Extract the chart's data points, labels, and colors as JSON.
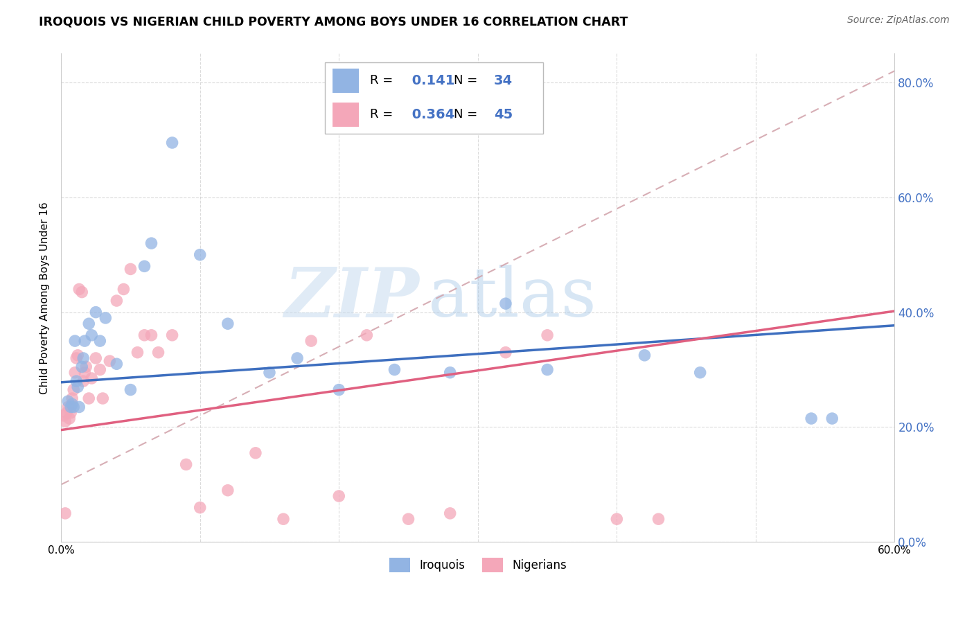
{
  "title": "IROQUOIS VS NIGERIAN CHILD POVERTY AMONG BOYS UNDER 16 CORRELATION CHART",
  "source": "Source: ZipAtlas.com",
  "ylabel": "Child Poverty Among Boys Under 16",
  "xlim": [
    0.0,
    0.6
  ],
  "ylim": [
    0.0,
    0.85
  ],
  "ytick_vals": [
    0.0,
    0.2,
    0.4,
    0.6,
    0.8
  ],
  "xtick_vals": [
    0.0,
    0.1,
    0.2,
    0.3,
    0.4,
    0.5,
    0.6
  ],
  "iroquois_color": "#92B4E3",
  "nigerian_color": "#F4A7B9",
  "regression_blue": "#3E6FBF",
  "regression_pink": "#E06080",
  "dashed_color": "#D0A0A8",
  "iroquois_R": 0.141,
  "iroquois_N": 34,
  "nigerian_R": 0.364,
  "nigerian_N": 45,
  "watermark_zip": "ZIP",
  "watermark_atlas": "atlas",
  "legend_label_iroquois": "Iroquois",
  "legend_label_nigerians": "Nigerians",
  "right_tick_color": "#4472C4",
  "iroquois_x": [
    0.005,
    0.007,
    0.008,
    0.009,
    0.01,
    0.011,
    0.012,
    0.013,
    0.015,
    0.016,
    0.017,
    0.02,
    0.022,
    0.025,
    0.028,
    0.032,
    0.04,
    0.05,
    0.06,
    0.065,
    0.08,
    0.1,
    0.12,
    0.15,
    0.17,
    0.2,
    0.24,
    0.28,
    0.32,
    0.35,
    0.42,
    0.46,
    0.54,
    0.555
  ],
  "iroquois_y": [
    0.245,
    0.235,
    0.24,
    0.235,
    0.35,
    0.28,
    0.27,
    0.235,
    0.305,
    0.32,
    0.35,
    0.38,
    0.36,
    0.4,
    0.35,
    0.39,
    0.31,
    0.265,
    0.48,
    0.52,
    0.695,
    0.5,
    0.38,
    0.295,
    0.32,
    0.265,
    0.3,
    0.295,
    0.415,
    0.3,
    0.325,
    0.295,
    0.215,
    0.215
  ],
  "nigerian_x": [
    0.002,
    0.003,
    0.004,
    0.005,
    0.006,
    0.007,
    0.008,
    0.009,
    0.01,
    0.011,
    0.012,
    0.013,
    0.015,
    0.016,
    0.017,
    0.018,
    0.02,
    0.022,
    0.025,
    0.028,
    0.03,
    0.035,
    0.04,
    0.045,
    0.05,
    0.055,
    0.06,
    0.065,
    0.07,
    0.08,
    0.09,
    0.1,
    0.12,
    0.14,
    0.16,
    0.18,
    0.2,
    0.22,
    0.25,
    0.28,
    0.32,
    0.35,
    0.4,
    0.43,
    0.003
  ],
  "nigerian_y": [
    0.22,
    0.21,
    0.225,
    0.235,
    0.215,
    0.225,
    0.25,
    0.265,
    0.295,
    0.32,
    0.325,
    0.44,
    0.435,
    0.28,
    0.295,
    0.305,
    0.25,
    0.285,
    0.32,
    0.3,
    0.25,
    0.315,
    0.42,
    0.44,
    0.475,
    0.33,
    0.36,
    0.36,
    0.33,
    0.36,
    0.135,
    0.06,
    0.09,
    0.155,
    0.04,
    0.35,
    0.08,
    0.36,
    0.04,
    0.05,
    0.33,
    0.36,
    0.04,
    0.04,
    0.05
  ]
}
